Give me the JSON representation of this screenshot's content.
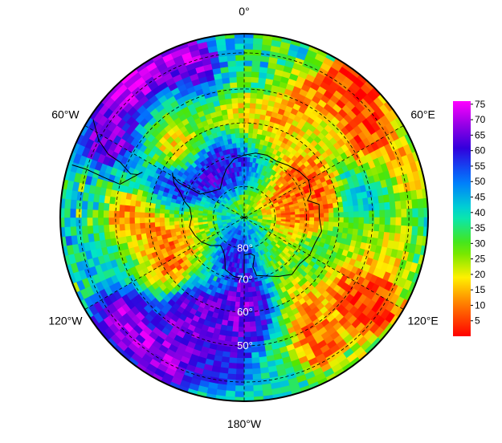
{
  "map": {
    "projection": "south-polar-stereographic",
    "longitude_labels": [
      {
        "text": "0°",
        "lon": 0
      },
      {
        "text": "60°E",
        "lon": 60
      },
      {
        "text": "120°E",
        "lon": 120
      },
      {
        "text": "180°W",
        "lon": 180
      },
      {
        "text": "120°W",
        "lon": -120
      },
      {
        "text": "60°W",
        "lon": -60
      }
    ],
    "latitude_labels": [
      {
        "text": "80°",
        "lat": -80
      },
      {
        "text": "70°",
        "lat": -70
      },
      {
        "text": "60°",
        "lat": -60
      },
      {
        "text": "50°",
        "lat": -50
      }
    ],
    "graticule_latitudes": [
      -80,
      -70,
      -60,
      -50,
      -40
    ],
    "graticule_longitudes": [
      0,
      60,
      120,
      180,
      -120,
      -60
    ],
    "boundary_latitude": -35,
    "colorscale": "rainbow",
    "colorbar": {
      "min": 0,
      "max": 76,
      "tick_labels": [
        "5",
        "10",
        "15",
        "20",
        "25",
        "30",
        "35",
        "40",
        "45",
        "50",
        "55",
        "60",
        "65",
        "70",
        "75"
      ],
      "tick_values": [
        5,
        10,
        15,
        20,
        25,
        30,
        35,
        40,
        45,
        50,
        55,
        60,
        65,
        70,
        75
      ]
    },
    "colors": {
      "coastline": "#000000",
      "graticule": "#000000",
      "boundary": "#000000",
      "lat_label": "#ffffff"
    },
    "anomaly_regions": [
      {
        "lat": -36,
        "lon": -40,
        "value": 75
      },
      {
        "lat": -40,
        "lon": -20,
        "value": 72
      },
      {
        "lat": -42,
        "lon": -60,
        "value": 65
      },
      {
        "lat": -38,
        "lon": 40,
        "value": 3
      },
      {
        "lat": -45,
        "lon": 55,
        "value": 5
      },
      {
        "lat": -48,
        "lon": 30,
        "value": 10
      },
      {
        "lat": -40,
        "lon": 75,
        "value": 15
      },
      {
        "lat": -45,
        "lon": 100,
        "value": 20
      },
      {
        "lat": -42,
        "lon": 125,
        "value": 5
      },
      {
        "lat": -50,
        "lon": 120,
        "value": 4
      },
      {
        "lat": -55,
        "lon": 105,
        "value": 30
      },
      {
        "lat": -45,
        "lon": 150,
        "value": 8
      },
      {
        "lat": -40,
        "lon": 170,
        "value": 40
      },
      {
        "lat": -38,
        "lon": -150,
        "value": 68
      },
      {
        "lat": -42,
        "lon": -130,
        "value": 70
      },
      {
        "lat": -45,
        "lon": -170,
        "value": 60
      },
      {
        "lat": -55,
        "lon": -150,
        "value": 65
      },
      {
        "lat": -60,
        "lon": -120,
        "value": 8
      },
      {
        "lat": -62,
        "lon": -100,
        "value": 6
      },
      {
        "lat": -55,
        "lon": -90,
        "value": 10
      },
      {
        "lat": -50,
        "lon": -110,
        "value": 40
      },
      {
        "lat": -60,
        "lon": 150,
        "value": 10
      },
      {
        "lat": -62,
        "lon": 170,
        "value": 70
      },
      {
        "lat": -58,
        "lon": -175,
        "value": 64
      },
      {
        "lat": -70,
        "lon": 50,
        "value": 8
      },
      {
        "lat": -72,
        "lon": 80,
        "value": 10
      },
      {
        "lat": -68,
        "lon": 70,
        "value": 5
      },
      {
        "lat": -78,
        "lon": 140,
        "value": 12
      },
      {
        "lat": -80,
        "lon": 170,
        "value": 68
      },
      {
        "lat": -82,
        "lon": -160,
        "value": 60
      },
      {
        "lat": -75,
        "lon": -20,
        "value": 62
      },
      {
        "lat": -70,
        "lon": -30,
        "value": 65
      },
      {
        "lat": -72,
        "lon": 10,
        "value": 55
      },
      {
        "lat": -65,
        "lon": -70,
        "value": 60
      },
      {
        "lat": -62,
        "lon": 20,
        "value": 10
      },
      {
        "lat": -58,
        "lon": 0,
        "value": 20
      },
      {
        "lat": -55,
        "lon": 40,
        "value": 25
      },
      {
        "lat": -52,
        "lon": -30,
        "value": 35
      },
      {
        "lat": -60,
        "lon": -40,
        "value": 10
      },
      {
        "lat": -50,
        "lon": 80,
        "value": 45
      },
      {
        "lat": -65,
        "lon": 125,
        "value": 35
      },
      {
        "lat": -75,
        "lon": -110,
        "value": 20
      },
      {
        "lat": -85,
        "lon": 30,
        "value": 15
      }
    ]
  }
}
